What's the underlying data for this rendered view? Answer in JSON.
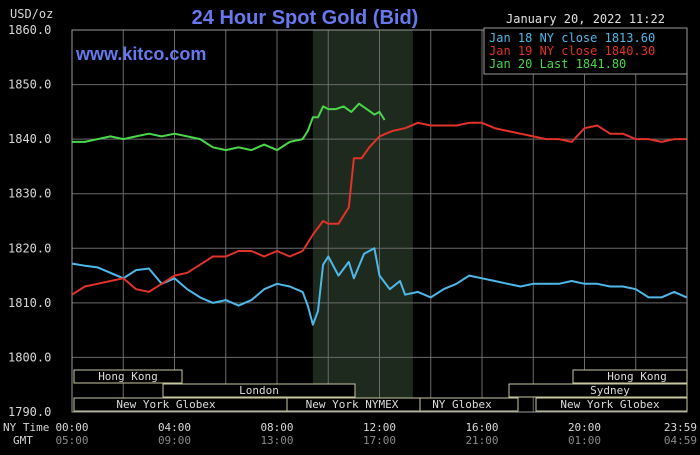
{
  "header": {
    "unit": "USD/oz",
    "title": "24 Hour Spot Gold (Bid)",
    "watermark": "www.kitco.com",
    "timestamp": "January 20, 2022 11:22"
  },
  "legend": [
    {
      "label": "Jan 18 NY close 1813.60",
      "color": "#4fb8e8"
    },
    {
      "label": "Jan 19 NY close 1840.30",
      "color": "#e0332a"
    },
    {
      "label": "Jan 20 Last 1841.80",
      "color": "#4bd64b"
    }
  ],
  "axis_labels": {
    "ny_time": "NY Time",
    "gmt": "GMT"
  },
  "sessions": {
    "hong_kong_1": "Hong Kong",
    "london": "London",
    "new_york_globex_1": "New York Globex",
    "new_york_nymex": "New York NYMEX",
    "ny_globex": "NY Globex",
    "hong_kong_2": "Hong Kong",
    "sydney": "Sydney",
    "new_york_globex_2": "New York Globex"
  },
  "chart_data": {
    "type": "line",
    "title": "24 Hour Spot Gold (Bid)",
    "ylabel": "USD/oz",
    "ylim": [
      1790,
      1860
    ],
    "yticks": [
      1790,
      1800,
      1810,
      1820,
      1830,
      1840,
      1850,
      1860
    ],
    "ytick_labels": [
      "1790.0",
      "1800.0",
      "1810.0",
      "1820.0",
      "1830.0",
      "1840.0",
      "1850.0",
      "1860.0"
    ],
    "xlim": [
      0,
      24
    ],
    "xticks_ny": [
      "00:00",
      "04:00",
      "08:00",
      "12:00",
      "16:00",
      "20:00",
      "23:59"
    ],
    "xticks_gmt": [
      "05:00",
      "09:00",
      "13:00",
      "17:00",
      "21:00",
      "01:00",
      "04:59"
    ],
    "grid": true,
    "legend_position": "top-right",
    "highlight_range_hours": [
      9.4,
      13.3
    ],
    "series": [
      {
        "name": "Jan 18 NY close 1813.60",
        "color": "#4fb8e8",
        "x": [
          0,
          0.5,
          1,
          1.5,
          2,
          2.5,
          3,
          3.5,
          4,
          4.5,
          5,
          5.5,
          6,
          6.5,
          7,
          7.5,
          8,
          8.5,
          9,
          9.2,
          9.4,
          9.6,
          9.8,
          10,
          10.4,
          10.8,
          11,
          11.4,
          11.8,
          12,
          12.4,
          12.8,
          13,
          13.5,
          14,
          14.5,
          15,
          15.5,
          16,
          16.5,
          17,
          17.5,
          18,
          18.5,
          19,
          19.5,
          20,
          20.5,
          21,
          21.5,
          22,
          22.5,
          23,
          23.5,
          23.99
        ],
        "values": [
          1817.2,
          1816.8,
          1816.5,
          1815.5,
          1814.5,
          1816.0,
          1816.3,
          1813.5,
          1814.5,
          1812.5,
          1811.0,
          1810.0,
          1810.5,
          1809.5,
          1810.5,
          1812.5,
          1813.5,
          1813.0,
          1812.0,
          1809.5,
          1806.0,
          1808.5,
          1817.0,
          1818.5,
          1815.0,
          1817.5,
          1814.5,
          1819.0,
          1820.0,
          1815.0,
          1812.5,
          1814.0,
          1811.5,
          1812.0,
          1811.0,
          1812.5,
          1813.5,
          1815.0,
          1814.5,
          1814.0,
          1813.5,
          1813.0,
          1813.5,
          1813.5,
          1813.5,
          1814.0,
          1813.5,
          1813.5,
          1813.0,
          1813.0,
          1812.5,
          1811.0,
          1811.0,
          1812.0,
          1811.0
        ]
      },
      {
        "name": "Jan 19 NY close 1840.30",
        "color": "#e0332a",
        "x": [
          0,
          0.5,
          1,
          1.5,
          2,
          2.5,
          3,
          3.5,
          4,
          4.5,
          5,
          5.5,
          6,
          6.5,
          7,
          7.5,
          8,
          8.5,
          9,
          9.4,
          9.8,
          10,
          10.4,
          10.8,
          11,
          11.3,
          11.6,
          12,
          12.5,
          13,
          13.5,
          14,
          14.5,
          15,
          15.5,
          16,
          16.5,
          17,
          17.5,
          18,
          18.5,
          19,
          19.5,
          20,
          20.5,
          21,
          21.5,
          22,
          22.5,
          23,
          23.5,
          23.99
        ],
        "values": [
          1811.5,
          1813.0,
          1813.5,
          1814.0,
          1814.5,
          1812.5,
          1812.0,
          1813.5,
          1815.0,
          1815.5,
          1817.0,
          1818.5,
          1818.5,
          1819.5,
          1819.5,
          1818.5,
          1819.5,
          1818.5,
          1819.5,
          1822.5,
          1825.0,
          1824.5,
          1824.5,
          1827.5,
          1836.5,
          1836.5,
          1838.5,
          1840.5,
          1841.5,
          1842.0,
          1843.0,
          1842.5,
          1842.5,
          1842.5,
          1843.0,
          1843.0,
          1842.0,
          1841.5,
          1841.0,
          1840.5,
          1840.0,
          1840.0,
          1839.5,
          1842.0,
          1842.5,
          1841.0,
          1841.0,
          1840.0,
          1840.0,
          1839.5,
          1840.0,
          1840.0
        ]
      },
      {
        "name": "Jan 20 Last 1841.80",
        "color": "#4bd64b",
        "x": [
          0,
          0.5,
          1,
          1.5,
          2,
          2.5,
          3,
          3.5,
          4,
          4.5,
          5,
          5.5,
          6,
          6.5,
          7,
          7.5,
          8,
          8.5,
          9,
          9.2,
          9.4,
          9.6,
          9.8,
          10,
          10.3,
          10.6,
          10.9,
          11.2,
          11.5,
          11.8,
          12.0,
          12.2
        ],
        "values": [
          1839.5,
          1839.5,
          1840.0,
          1840.5,
          1840.0,
          1840.5,
          1841.0,
          1840.5,
          1841.0,
          1840.5,
          1840.0,
          1838.5,
          1838.0,
          1838.5,
          1838.0,
          1839.0,
          1838.0,
          1839.5,
          1840.0,
          1841.5,
          1844.0,
          1844.0,
          1846.0,
          1845.5,
          1845.5,
          1846.0,
          1845.0,
          1846.5,
          1845.5,
          1844.5,
          1845.0,
          1843.5
        ]
      }
    ]
  }
}
